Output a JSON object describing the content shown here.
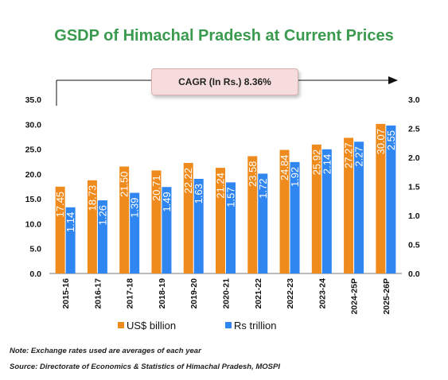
{
  "title": "GSDP of Himachal Pradesh at Current Prices",
  "cagr_label": "CAGR (In Rs.) 8.36%",
  "notes": {
    "note": "Note: Exchange rates used are averages of each year",
    "source": "Source: Directorate of Economics & Statistics of Himachal Pradesh, MOSPI"
  },
  "colors": {
    "usd": "#ef8a1c",
    "rs": "#2f86f0",
    "title": "#3a9a4e"
  },
  "chart_data": {
    "type": "bar",
    "title": "GSDP of Himachal Pradesh at Current Prices",
    "categories": [
      "2015-16",
      "2016-17",
      "2017-18",
      "2018-19",
      "2019-20",
      "2020-21",
      "2021-22",
      "2022-23",
      "2023-24",
      "2024-25P",
      "2025-26P"
    ],
    "series": [
      {
        "name": "US$ billion",
        "axis": "left",
        "values": [
          17.45,
          18.73,
          21.5,
          20.71,
          22.22,
          21.24,
          23.58,
          24.84,
          25.92,
          27.27,
          30.07
        ],
        "labels": [
          "17.45",
          "18.73",
          "21.50",
          "20.71",
          "22.22",
          "21.24",
          "23.58",
          "24.84",
          "25.92",
          "27.27",
          "30.07"
        ]
      },
      {
        "name": "Rs trillion",
        "axis": "right",
        "values": [
          1.14,
          1.26,
          1.39,
          1.49,
          1.63,
          1.57,
          1.72,
          1.92,
          2.14,
          2.27,
          2.55
        ],
        "labels": [
          "1.14",
          "1.26",
          "1.39",
          "1.49",
          "1.63",
          "1.57",
          "1.72",
          "1.92",
          "2.14",
          "2.27",
          "2.55"
        ]
      }
    ],
    "left_axis": {
      "range": [
        0,
        35
      ],
      "ticks": [
        "0.0",
        "5.0",
        "10.0",
        "15.0",
        "20.0",
        "25.0",
        "30.0",
        "35.0"
      ]
    },
    "right_axis": {
      "range": [
        0,
        3
      ],
      "ticks": [
        "0.0",
        "0.5",
        "1.0",
        "1.5",
        "2.0",
        "2.5",
        "3.0"
      ]
    },
    "grid": false,
    "legend_position": "bottom"
  }
}
